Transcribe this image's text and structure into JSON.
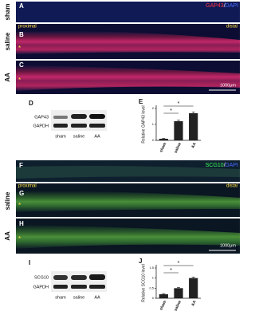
{
  "gap43": {
    "panels": [
      {
        "letter": "A",
        "group": "sham"
      },
      {
        "letter": "B",
        "group": "saline"
      },
      {
        "letter": "C",
        "group": "AA"
      }
    ],
    "stain": "GAP43",
    "separator": "/",
    "counterstain": "DAPI",
    "proximal": "proximal",
    "distal": "distal",
    "scale": "1000μm",
    "star": "*",
    "blot": {
      "letter": "D",
      "rows": [
        "GAP43",
        "GAPDH"
      ],
      "lanes": [
        "sham",
        "saline",
        "AA"
      ]
    }
  },
  "scg10": {
    "panels": [
      {
        "letter": "F",
        "group": ""
      },
      {
        "letter": "G",
        "group": "saline"
      },
      {
        "letter": "H",
        "group": "AA"
      }
    ],
    "stain": "SCG10",
    "separator": "/",
    "counterstain": "DAPI",
    "proximal": "proximal",
    "distal": "distal",
    "scale": "1000μm",
    "star": "*",
    "blot": {
      "letter": "I",
      "rows": [
        "SCG10",
        "GAPDH"
      ],
      "lanes": [
        "sham",
        "saline",
        "AA"
      ]
    }
  },
  "chart_data": [
    {
      "type": "bar",
      "panel_label": "E",
      "ylabel": "Relative GAP43 level",
      "categories": [
        "sham",
        "saline",
        "AA"
      ],
      "values": [
        0.1,
        1.2,
        1.7
      ],
      "errors": [
        0.02,
        0.06,
        0.07
      ],
      "color": "#222222",
      "ylim": [
        0,
        2
      ],
      "yticks": [
        0,
        1,
        2
      ],
      "annotations": [
        "*",
        "*"
      ]
    },
    {
      "type": "bar",
      "panel_label": "J",
      "ylabel": "Relative SCG10 level",
      "categories": [
        "sham",
        "saline",
        "AA"
      ],
      "values": [
        0.2,
        0.5,
        1.0
      ],
      "errors": [
        0.03,
        0.04,
        0.05
      ],
      "color": "#222222",
      "ylim": [
        0,
        1.5
      ],
      "yticks": [
        0,
        0.5,
        1,
        1.5
      ],
      "annotations": [
        "*",
        "*"
      ]
    }
  ]
}
